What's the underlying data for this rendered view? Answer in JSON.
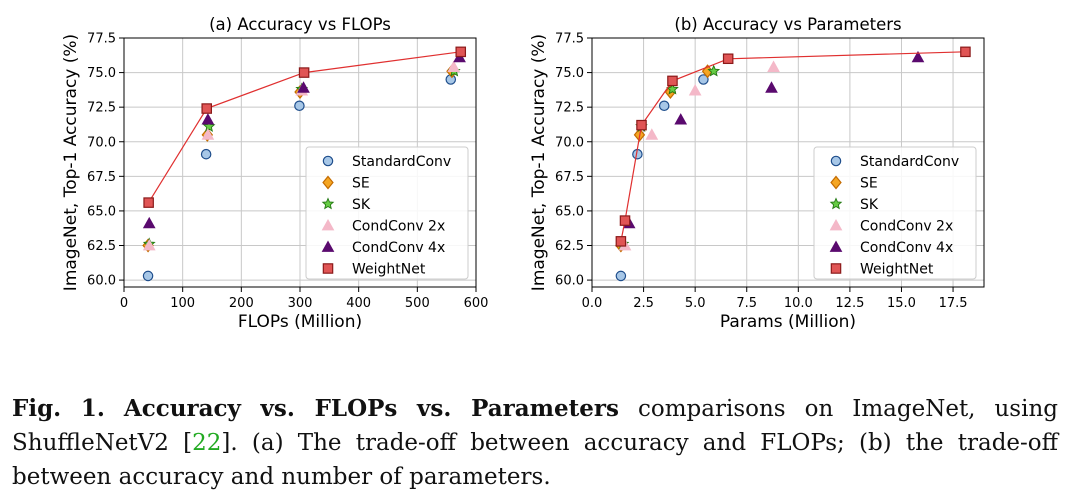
{
  "chart_data": [
    {
      "type": "scatter",
      "title": "(a) Accuracy vs FLOPs",
      "xlabel": "FLOPs (Million)",
      "ylabel": "ImageNet, Top-1 Accuracy (%)",
      "xlim": [
        0,
        600
      ],
      "ylim": [
        59.5,
        77.5
      ],
      "xticks": [
        "0",
        "100",
        "200",
        "300",
        "400",
        "500",
        "600"
      ],
      "yticks": [
        "60.0",
        "62.5",
        "65.0",
        "67.5",
        "70.0",
        "72.5",
        "75.0",
        "77.5"
      ],
      "xtick_values": [
        0,
        100,
        200,
        300,
        400,
        500,
        600
      ],
      "ytick_values": [
        60.0,
        62.5,
        65.0,
        67.5,
        70.0,
        72.5,
        75.0,
        77.5
      ],
      "grid": true,
      "legend_position": "lower-right",
      "series": [
        {
          "name": "StandardConv",
          "marker": "circle",
          "color": "#a7c7e7",
          "edge": "#1f4e8c",
          "x": [
            41,
            140,
            299,
            557
          ],
          "y": [
            60.3,
            69.1,
            72.6,
            74.5
          ]
        },
        {
          "name": "SE",
          "marker": "diamond",
          "color": "#f5a623",
          "edge": "#c46b00",
          "x": [
            41,
            142,
            300,
            559
          ],
          "y": [
            62.5,
            70.5,
            73.6,
            75.1
          ]
        },
        {
          "name": "SK",
          "marker": "star",
          "color": "#66cc44",
          "edge": "#227711",
          "x": [
            43,
            145,
            303,
            563
          ],
          "y": [
            62.6,
            71.1,
            73.8,
            75.1
          ]
        },
        {
          "name": "CondConv 2x",
          "marker": "triangle",
          "color": "#f4b8c8",
          "edge": "#f4b8c8",
          "x": [
            43,
            143,
            303,
            562
          ],
          "y": [
            62.5,
            70.5,
            73.7,
            75.4
          ]
        },
        {
          "name": "CondConv 4x",
          "marker": "triangle",
          "color": "#5a0a6e",
          "edge": "#5a0a6e",
          "x": [
            43,
            143,
            306,
            572
          ],
          "y": [
            64.1,
            71.6,
            73.9,
            76.1
          ]
        },
        {
          "name": "WeightNet",
          "marker": "square",
          "color": "#e05555",
          "edge": "#8b1a1a",
          "x": [
            42,
            141,
            307,
            574
          ],
          "y": [
            65.6,
            72.4,
            75.0,
            76.5
          ],
          "line": true
        }
      ]
    },
    {
      "type": "scatter",
      "title": "(b) Accuracy vs Parameters",
      "xlabel": "Params (Million)",
      "ylabel": "ImageNet, Top-1 Accuracy (%)",
      "xlim": [
        0,
        19
      ],
      "ylim": [
        59.5,
        77.5
      ],
      "xticks": [
        "0.0",
        "2.5",
        "5.0",
        "7.5",
        "10.0",
        "12.5",
        "15.0",
        "17.5"
      ],
      "yticks": [
        "60.0",
        "62.5",
        "65.0",
        "67.5",
        "70.0",
        "72.5",
        "75.0",
        "77.5"
      ],
      "xtick_values": [
        0.0,
        2.5,
        5.0,
        7.5,
        10.0,
        12.5,
        15.0,
        17.5
      ],
      "ytick_values": [
        60.0,
        62.5,
        65.0,
        67.5,
        70.0,
        72.5,
        75.0,
        77.5
      ],
      "grid": true,
      "legend_position": "lower-right",
      "series": [
        {
          "name": "StandardConv",
          "marker": "circle",
          "color": "#a7c7e7",
          "edge": "#1f4e8c",
          "x": [
            1.4,
            2.2,
            3.5,
            5.4
          ],
          "y": [
            60.3,
            69.1,
            72.6,
            74.5
          ]
        },
        {
          "name": "SE",
          "marker": "diamond",
          "color": "#f5a623",
          "edge": "#c46b00",
          "x": [
            1.4,
            2.3,
            3.8,
            5.6
          ],
          "y": [
            62.5,
            70.5,
            73.6,
            75.1
          ]
        },
        {
          "name": "SK",
          "marker": "star",
          "color": "#66cc44",
          "edge": "#227711",
          "x": [
            1.5,
            2.4,
            3.9,
            5.9
          ],
          "y": [
            62.6,
            71.1,
            73.8,
            75.1
          ]
        },
        {
          "name": "CondConv 2x",
          "marker": "triangle",
          "color": "#f4b8c8",
          "edge": "#f4b8c8",
          "x": [
            1.6,
            2.9,
            5.0,
            8.8
          ],
          "y": [
            62.5,
            70.5,
            73.7,
            75.4
          ]
        },
        {
          "name": "CondConv 4x",
          "marker": "triangle",
          "color": "#5a0a6e",
          "edge": "#5a0a6e",
          "x": [
            1.8,
            4.3,
            8.7,
            15.8
          ],
          "y": [
            64.1,
            71.6,
            73.9,
            76.1
          ]
        },
        {
          "name": "WeightNet",
          "marker": "square",
          "color": "#e05555",
          "edge": "#8b1a1a",
          "x": [
            1.4,
            1.6,
            2.4,
            3.9,
            6.6,
            18.1
          ],
          "y": [
            62.8,
            64.3,
            71.2,
            74.4,
            76.0,
            76.5
          ],
          "line": true
        }
      ]
    }
  ],
  "caption": {
    "label": "Fig. 1.",
    "bold_title": "Accuracy vs. FLOPs vs. Parameters",
    "text_1": "comparisons on ImageNet, using ShuffleNetV2 [",
    "ref": "22",
    "text_2": "]. (a) The trade-off between accuracy and FLOPs; (b) the trade-off between accuracy and number of parameters."
  }
}
